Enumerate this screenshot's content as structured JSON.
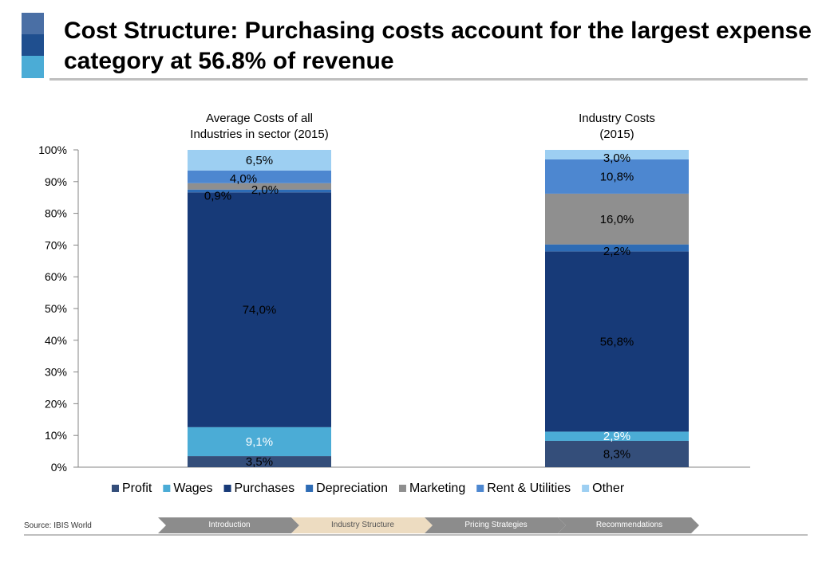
{
  "slide": {
    "title": "Cost Structure: Purchasing costs account for the largest expense category at 56.8% of revenue",
    "source": "Source: IBIS World",
    "accent_colors": [
      "#4a6fa5",
      "#1f4f8f",
      "#4bacd6"
    ]
  },
  "nav": {
    "steps": [
      {
        "label": "Introduction",
        "active": false
      },
      {
        "label": "Industry Structure",
        "active": true
      },
      {
        "label": "Pricing Strategies",
        "active": false
      },
      {
        "label": "Recommendations",
        "active": false
      }
    ],
    "colors": {
      "inactive": "#8c8c8c",
      "active": "#eddcc1"
    }
  },
  "chart_data": {
    "type": "bar",
    "stacked": true,
    "categories": [
      "Average Costs of all Industries in sector (2015)",
      "Industry Costs (2015)"
    ],
    "series": [
      {
        "name": "Profit",
        "color": "#344e7a",
        "values": [
          3.5,
          8.3
        ],
        "labels": [
          "3,5%",
          "8,3%"
        ]
      },
      {
        "name": "Wages",
        "color": "#4bacd6",
        "values": [
          9.1,
          2.9
        ],
        "labels": [
          "9,1%",
          "2,9%"
        ]
      },
      {
        "name": "Purchases",
        "color": "#173a78",
        "values": [
          74.0,
          56.8
        ],
        "labels": [
          "74,0%",
          "56,8%"
        ]
      },
      {
        "name": "Depreciation",
        "color": "#2e6cb5",
        "values": [
          0.9,
          2.2
        ],
        "labels": [
          "0,9%",
          "2,2%"
        ]
      },
      {
        "name": "Marketing",
        "color": "#8f8f8f",
        "values": [
          2.0,
          16.0
        ],
        "labels": [
          "2,0%",
          "16,0%"
        ]
      },
      {
        "name": "Rent & Utilities",
        "color": "#4d87d0",
        "values": [
          4.0,
          10.8
        ],
        "labels": [
          "4,0%",
          "10,8%"
        ]
      },
      {
        "name": "Other",
        "color": "#9dcff2",
        "values": [
          6.5,
          3.0
        ],
        "labels": [
          "6,5%",
          "3,0%"
        ]
      }
    ],
    "yticks": [
      "0%",
      "10%",
      "20%",
      "30%",
      "40%",
      "50%",
      "60%",
      "70%",
      "80%",
      "90%",
      "100%"
    ],
    "ylim": [
      0,
      100
    ],
    "grid": false,
    "legend": "bottom"
  }
}
